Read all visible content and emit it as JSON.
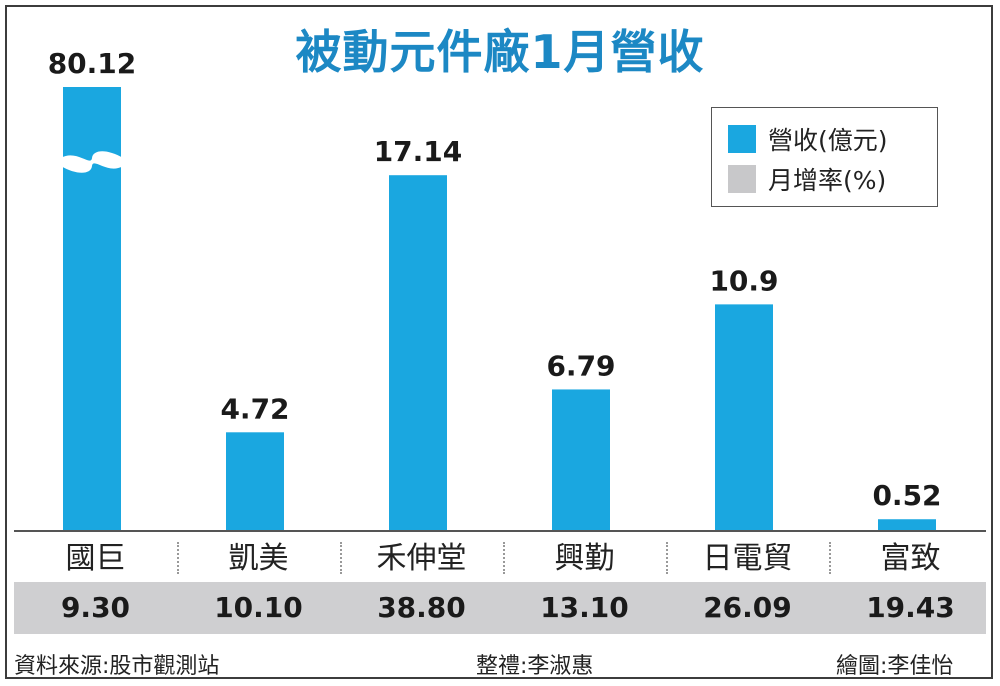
{
  "title": "被動元件廠1月營收",
  "legend": {
    "revenue_label": "營收(億元)",
    "growth_label": "月增率(%)"
  },
  "colors": {
    "bar": "#1aa7e0",
    "growth_band": "#cfcfd1",
    "title": "#1c88c4"
  },
  "chart_data": {
    "type": "bar",
    "categories": [
      "國巨",
      "凱美",
      "禾伸堂",
      "興勤",
      "日電貿",
      "富致"
    ],
    "series": [
      {
        "name": "營收(億元)",
        "values": [
          80.12,
          4.72,
          17.14,
          6.79,
          10.9,
          0.52
        ]
      },
      {
        "name": "月增率(%)",
        "values": [
          9.3,
          10.1,
          38.8,
          13.1,
          26.09,
          19.43
        ]
      }
    ],
    "value_labels": [
      "80.12",
      "4.72",
      "17.14",
      "6.79",
      "10.9",
      "0.52"
    ],
    "growth_labels": [
      "9.30",
      "10.10",
      "38.80",
      "13.10",
      "26.09",
      "19.43"
    ],
    "axis_break_on": "國巨"
  },
  "footer": {
    "source": "資料來源:股市觀測站",
    "editor": "整禮:李淑惠",
    "illustrator": "繪圖:李佳怡"
  }
}
